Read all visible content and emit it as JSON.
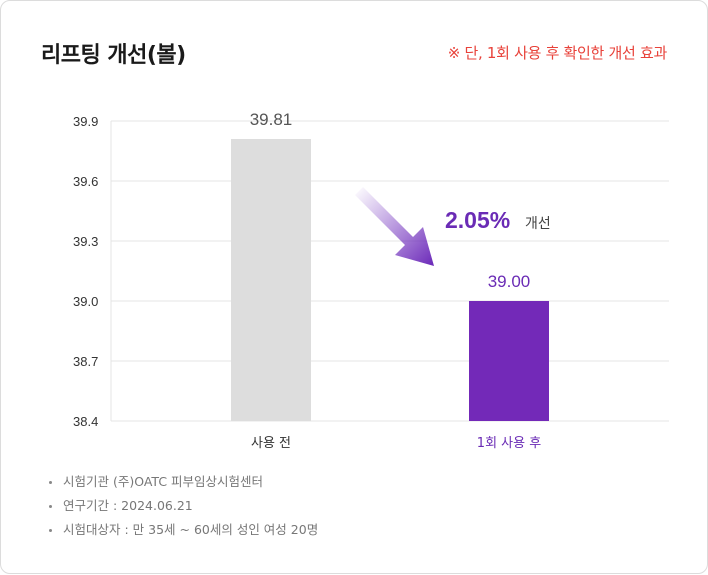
{
  "title": "리프팅 개선(볼)",
  "note": "※ 단, 1회 사용 후 확인한 개선 효과",
  "colors": {
    "before_bar": "#dddddd",
    "after_bar": "#7329b8",
    "accent_text": "#6a2bb5",
    "note_text": "#e8423a",
    "grid": "#e4e4e4"
  },
  "chart_data": {
    "type": "bar",
    "categories": [
      "사용 전",
      "1회 사용 후"
    ],
    "values": [
      39.81,
      39.0
    ],
    "value_labels": [
      "39.81",
      "39.00"
    ],
    "ylim": [
      38.4,
      39.9
    ],
    "yticks": [
      "39.9",
      "39.6",
      "39.3",
      "39.0",
      "38.7",
      "38.4"
    ],
    "grid": true,
    "annotation": {
      "value": "2.05%",
      "label": "개선",
      "icon": "down-right-arrow-icon"
    }
  },
  "footnotes": [
    "시험기관 (주)OATC 피부임상시험센터",
    "연구기간 : 2024.06.21",
    "시험대상자 : 만 35세 ~ 60세의 성인 여성 20명"
  ]
}
